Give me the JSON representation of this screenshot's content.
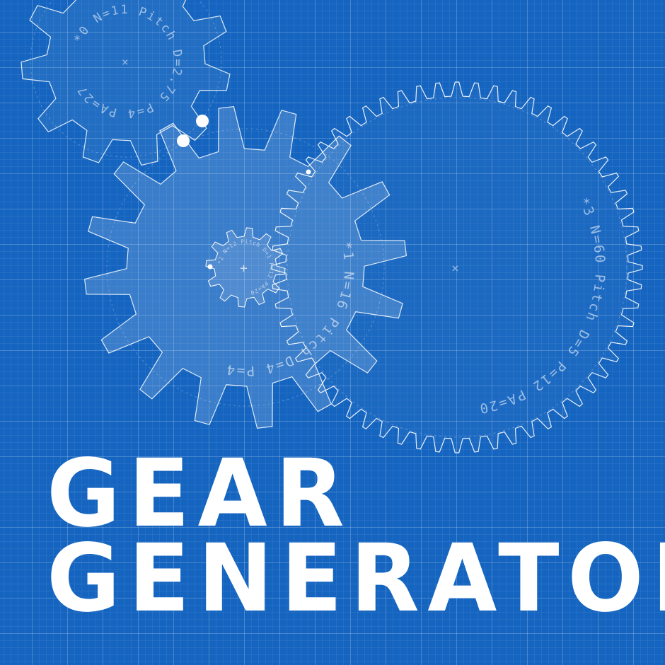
{
  "title": {
    "line1": "GEAR",
    "line2": "GENERATOR"
  },
  "gears": {
    "gear_0": {
      "label": "*0 N=11 Pitch D=2.75 P=4 PA=27",
      "teeth": 11
    },
    "gear_1": {
      "label": "*1 N=16 Pitch D=4 P=4",
      "teeth": 16
    },
    "gear_2": {
      "label": "*2 N=12 Pitch D=1 P=12 PA=20",
      "teeth": 12
    },
    "gear_3": {
      "label": "*3 N=60 Pitch D=5 P=12 PA=20",
      "teeth": 60
    }
  },
  "colors": {
    "background": "#1565c0",
    "line": "#ffffff"
  }
}
